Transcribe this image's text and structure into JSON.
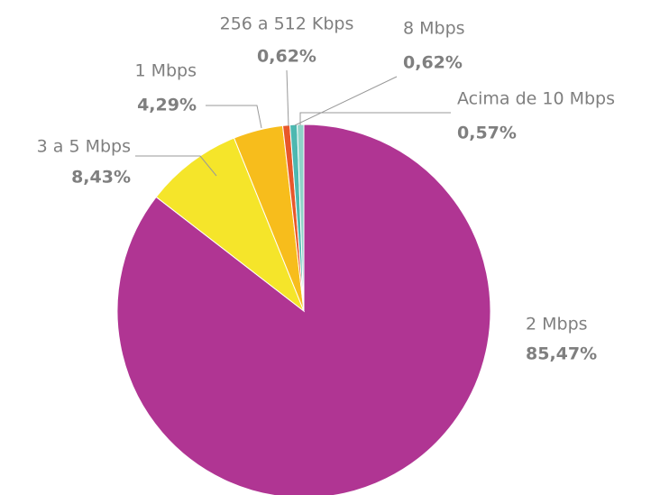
{
  "chart_data": {
    "type": "pie",
    "categories": [
      "2 Mbps",
      "3 a 5 Mbps",
      "1 Mbps",
      "256 a 512 Kbps",
      "8 Mbps",
      "Acima de 10 Mbps"
    ],
    "values": [
      85.47,
      8.43,
      4.29,
      0.62,
      0.62,
      0.57
    ],
    "value_labels": [
      "85,47%",
      "8,43%",
      "4,29%",
      "0,62%",
      "0,62%",
      "0,57%"
    ],
    "colors": [
      "#b03593",
      "#f5e52a",
      "#f7bd1c",
      "#e8572a",
      "#4db8b0",
      "#8fd3c8"
    ]
  }
}
